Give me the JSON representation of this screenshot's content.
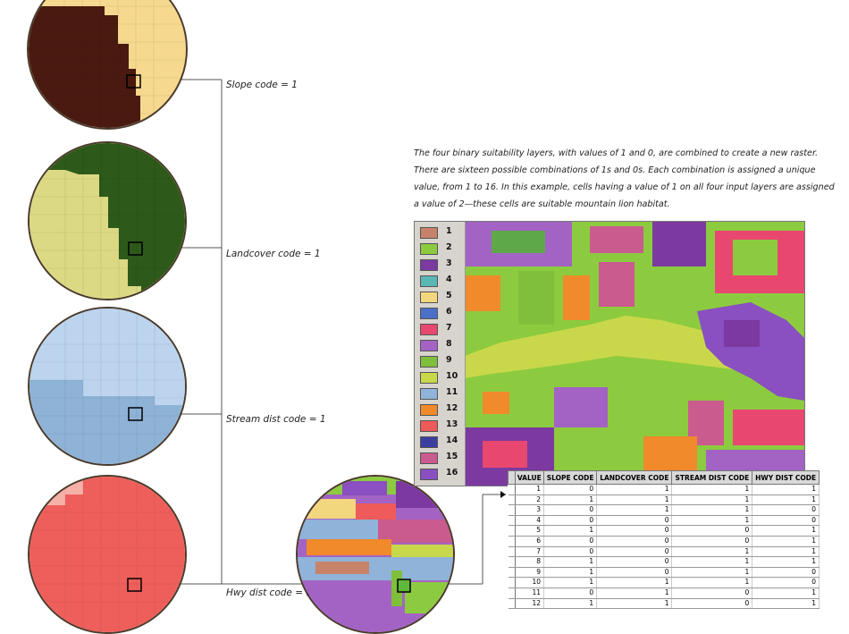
{
  "labels": {
    "slope": "Slope code = 1",
    "landcover": "Landcover code = 1",
    "stream": "Stream dist code = 1",
    "hwy": "Hwy dist code = 1"
  },
  "description": "The four binary suitability layers, with values of 1 and 0, are combined to create a new raster. There are sixteen possible combinations of 1s and 0s. Each combination is assigned a unique value, from 1 to 16. In this example, cells having a value of 1 on all four input layers are assigned a value of 2—these cells are suitable mountain lion habitat.",
  "legend": [
    {
      "value": "1",
      "color": "#c6836a"
    },
    {
      "value": "2",
      "color": "#8ccb3f"
    },
    {
      "value": "3",
      "color": "#7c3aa0"
    },
    {
      "value": "4",
      "color": "#5bb7b4"
    },
    {
      "value": "5",
      "color": "#f2d77e"
    },
    {
      "value": "6",
      "color": "#4a6fc6"
    },
    {
      "value": "7",
      "color": "#e8476f"
    },
    {
      "value": "8",
      "color": "#a363c4"
    },
    {
      "value": "9",
      "color": "#7fbf3b"
    },
    {
      "value": "10",
      "color": "#c9d84a"
    },
    {
      "value": "11",
      "color": "#8fb3d9"
    },
    {
      "value": "12",
      "color": "#f08a2a"
    },
    {
      "value": "13",
      "color": "#ef5a5a"
    },
    {
      "value": "14",
      "color": "#3b3fa0"
    },
    {
      "value": "15",
      "color": "#c95b8e"
    },
    {
      "value": "16",
      "color": "#8a4fc0"
    }
  ],
  "table": {
    "headers": [
      "VALUE",
      "SLOPE CODE",
      "LANDCOVER CODE",
      "STREAM DIST CODE",
      "HWY DIST CODE"
    ],
    "rows": [
      [
        "1",
        "0",
        "1",
        "1",
        "1"
      ],
      [
        "2",
        "1",
        "1",
        "1",
        "1"
      ],
      [
        "3",
        "0",
        "1",
        "1",
        "0"
      ],
      [
        "4",
        "0",
        "0",
        "1",
        "0"
      ],
      [
        "5",
        "1",
        "0",
        "0",
        "1"
      ],
      [
        "6",
        "0",
        "0",
        "0",
        "1"
      ],
      [
        "7",
        "0",
        "0",
        "1",
        "1"
      ],
      [
        "8",
        "1",
        "0",
        "1",
        "1"
      ],
      [
        "9",
        "1",
        "0",
        "1",
        "0"
      ],
      [
        "10",
        "1",
        "1",
        "1",
        "0"
      ],
      [
        "11",
        "0",
        "1",
        "0",
        "1"
      ],
      [
        "12",
        "1",
        "1",
        "0",
        "1"
      ]
    ]
  }
}
